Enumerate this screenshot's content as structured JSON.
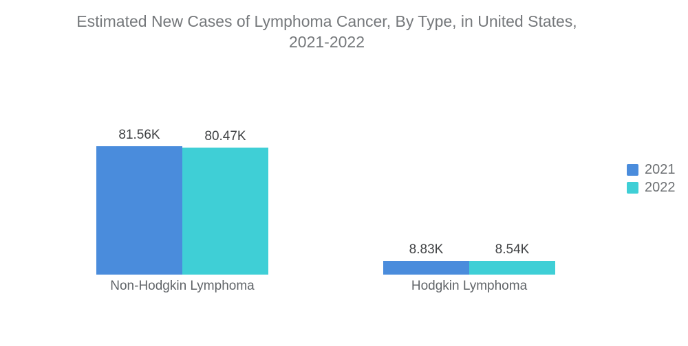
{
  "header": {
    "title_line1": "Estimated New Cases of Lymphoma Cancer, By Type, in United States,",
    "title_line2": "2021-2022"
  },
  "chart_data": {
    "type": "bar",
    "title": "Estimated New Cases of Lymphoma Cancer, By Type, in United States, 2021-2022",
    "categories": [
      "Non-Hodgkin Lymphoma",
      "Hodgkin Lymphoma"
    ],
    "series": [
      {
        "name": "2021",
        "color": "#4a8cdc",
        "values": [
          81.56,
          8.83
        ],
        "labels": [
          "81.56K",
          "8.83K"
        ]
      },
      {
        "name": "2022",
        "color": "#3fcfd6",
        "values": [
          80.47,
          8.54
        ],
        "labels": [
          "80.47K",
          "8.54K"
        ]
      }
    ],
    "unit": "K (thousands of cases)",
    "xlabel": "",
    "ylabel": "",
    "ylim": [
      0,
      90
    ],
    "grid": false,
    "axis_lines": false,
    "legend_position": "right",
    "title_color": "#75787b",
    "value_label_color": "#404244",
    "category_label_color": "#606468",
    "background_color": "#ffffff"
  },
  "legend": {
    "items": [
      {
        "label": "2021",
        "color": "#4a8cdc"
      },
      {
        "label": "2022",
        "color": "#3fcfd6"
      }
    ]
  }
}
